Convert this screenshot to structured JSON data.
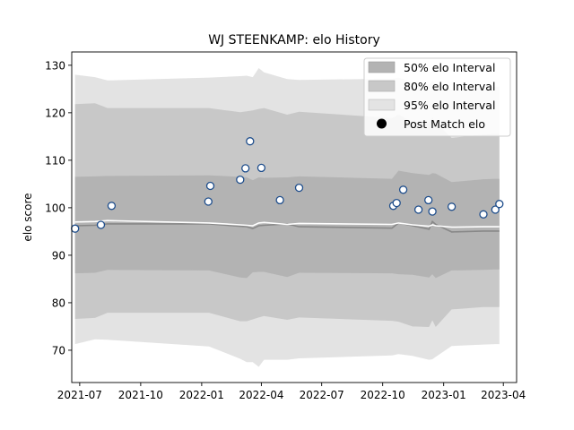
{
  "chart_data": {
    "type": "line",
    "title": "WJ STEENKAMP: elo History",
    "xlabel": "",
    "ylabel": "elo score",
    "xlim": [
      "2021-06-19",
      "2023-04-21"
    ],
    "ylim": [
      63.2,
      132.8
    ],
    "x_ticks": [
      "2021-07-01",
      "2021-10-01",
      "2022-01-01",
      "2022-04-01",
      "2022-07-01",
      "2022-10-01",
      "2023-01-01",
      "2023-04-01"
    ],
    "x_tick_labels": [
      "2021-07",
      "2021-10",
      "2022-01",
      "2022-04",
      "2022-07",
      "2022-10",
      "2023-01",
      "2023-04"
    ],
    "y_ticks": [
      70,
      80,
      90,
      100,
      110,
      120,
      130
    ],
    "grid": false,
    "legend": {
      "position": "top-right",
      "entries": [
        "50% elo Interval",
        "80% elo Interval",
        "95% elo Interval",
        "Post Match elo"
      ]
    },
    "colors": {
      "band50": "#b3b3b3",
      "band80": "#c8c8c8",
      "band95": "#e3e3e3",
      "mean_line": "#888888",
      "median_line": "#ffffff",
      "marker_fill": "#ffffff",
      "marker_edge": "#1f4e8c",
      "legend_marker": "#000000"
    },
    "bands": {
      "x": [
        "2021-06-24",
        "2021-07-24",
        "2021-08-12",
        "2022-01-12",
        "2022-02-28",
        "2022-03-10",
        "2022-03-19",
        "2022-03-28",
        "2022-04-05",
        "2022-05-10",
        "2022-05-28",
        "2022-10-15",
        "2022-10-25",
        "2022-11-15",
        "2022-12-10",
        "2022-12-15",
        "2022-12-20",
        "2023-01-13",
        "2023-03-02",
        "2023-03-20",
        "2023-03-26"
      ],
      "mean": [
        96.2,
        96.3,
        96.6,
        96.6,
        96.1,
        96.0,
        95.6,
        96.2,
        96.3,
        96.6,
        96.0,
        95.7,
        96.8,
        96.2,
        95.5,
        97.1,
        96.5,
        94.9,
        95.1,
        95.1,
        95.1
      ],
      "median": [
        97.0,
        97.1,
        97.3,
        96.8,
        96.4,
        96.3,
        96.2,
        96.8,
        96.9,
        96.5,
        96.7,
        96.5,
        96.8,
        96.4,
        96.1,
        96.4,
        96.2,
        95.9,
        96.0,
        96.0,
        96.0
      ],
      "p25": [
        86.2,
        86.3,
        86.9,
        86.8,
        85.3,
        85.2,
        86.4,
        86.5,
        86.5,
        85.4,
        86.3,
        86.2,
        86.0,
        85.9,
        85.3,
        86.0,
        85.2,
        86.8,
        86.9,
        87.0,
        87.0
      ],
      "p75": [
        106.5,
        106.6,
        106.7,
        106.8,
        106.5,
        106.4,
        105.8,
        106.4,
        106.3,
        106.4,
        106.6,
        106.1,
        107.8,
        107.3,
        106.9,
        107.3,
        107.2,
        105.4,
        106.0,
        106.1,
        106.1
      ],
      "p10": [
        76.6,
        76.8,
        77.9,
        77.9,
        76.1,
        76.1,
        76.5,
        76.9,
        77.2,
        76.4,
        76.9,
        76.2,
        76.0,
        75.0,
        74.9,
        76.3,
        74.9,
        78.6,
        79.1,
        79.1,
        79.1
      ],
      "p90": [
        121.8,
        122.0,
        121.0,
        121.0,
        120.1,
        120.3,
        120.5,
        120.8,
        121.0,
        119.6,
        120.2,
        118.9,
        119.6,
        118.1,
        117.8,
        119.0,
        117.9,
        114.7,
        115.4,
        115.5,
        115.5
      ],
      "p2_5": [
        71.3,
        72.3,
        72.2,
        70.8,
        68.2,
        67.5,
        67.5,
        66.5,
        68.0,
        68.0,
        68.3,
        68.9,
        69.2,
        68.8,
        68.0,
        68.1,
        68.6,
        70.9,
        71.2,
        71.3,
        71.3
      ],
      "p97_5": [
        128.0,
        127.5,
        126.8,
        127.4,
        127.7,
        127.8,
        127.5,
        129.4,
        128.5,
        127.1,
        126.9,
        127.2,
        127.4,
        126.4,
        126.0,
        126.7,
        126.2,
        124.8,
        125.3,
        125.5,
        125.5
      ]
    },
    "series": [
      {
        "name": "Post Match elo",
        "x": [
          "2021-06-24",
          "2021-08-02",
          "2021-08-18",
          "2022-01-11",
          "2022-01-14",
          "2022-02-28",
          "2022-03-08",
          "2022-03-15",
          "2022-04-01",
          "2022-04-29",
          "2022-05-28",
          "2022-10-17",
          "2022-10-22",
          "2022-11-01",
          "2022-11-24",
          "2022-12-09",
          "2022-12-15",
          "2023-01-13",
          "2023-03-02",
          "2023-03-20",
          "2023-03-26"
        ],
        "y": [
          95.6,
          96.4,
          100.4,
          101.3,
          104.6,
          105.9,
          108.3,
          114.0,
          108.4,
          101.6,
          104.2,
          100.4,
          101.0,
          103.8,
          99.6,
          101.6,
          99.2,
          100.2,
          98.6,
          99.6,
          100.8
        ]
      }
    ]
  }
}
